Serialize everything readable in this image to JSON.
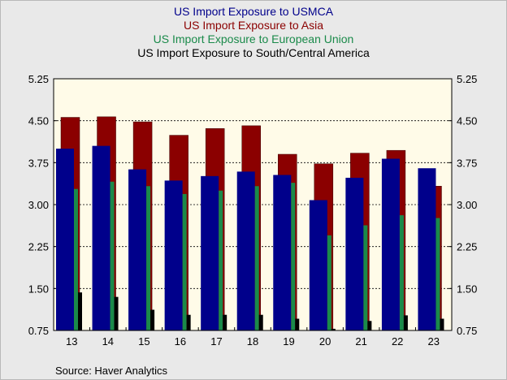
{
  "chart_data": {
    "type": "bar",
    "categories": [
      "13",
      "14",
      "15",
      "16",
      "17",
      "18",
      "19",
      "20",
      "21",
      "22",
      "23"
    ],
    "series": [
      {
        "name": "US Import Exposure to USMCA",
        "color": "#00008b",
        "values": [
          4.0,
          4.05,
          3.63,
          3.43,
          3.51,
          3.59,
          3.53,
          3.08,
          3.48,
          3.82,
          3.65
        ]
      },
      {
        "name": "US Import Exposure to Asia",
        "color": "#8b0000",
        "values": [
          4.56,
          4.57,
          4.48,
          4.24,
          4.36,
          4.41,
          3.9,
          3.73,
          3.92,
          3.97,
          3.33
        ]
      },
      {
        "name": "US Import Exposure to European Union",
        "color": "#1a8a4a",
        "values": [
          3.28,
          3.41,
          3.33,
          3.19,
          3.25,
          3.33,
          3.39,
          2.45,
          2.63,
          2.81,
          2.76
        ]
      },
      {
        "name": "US Import Exposure to South/Central America",
        "color": "#000000",
        "values": [
          1.43,
          1.35,
          1.12,
          1.03,
          1.03,
          1.03,
          0.96,
          0.78,
          0.92,
          1.02,
          0.96
        ]
      }
    ],
    "ylim": [
      0.75,
      5.25
    ],
    "yticks": [
      "5.25",
      "4.50",
      "3.75",
      "3.00",
      "2.25",
      "1.50",
      "0.75"
    ],
    "grid": "horizontal dashed",
    "legend": "top-center",
    "plot_background": "#fffbe8"
  },
  "source": "Source:  Haver Analytics"
}
